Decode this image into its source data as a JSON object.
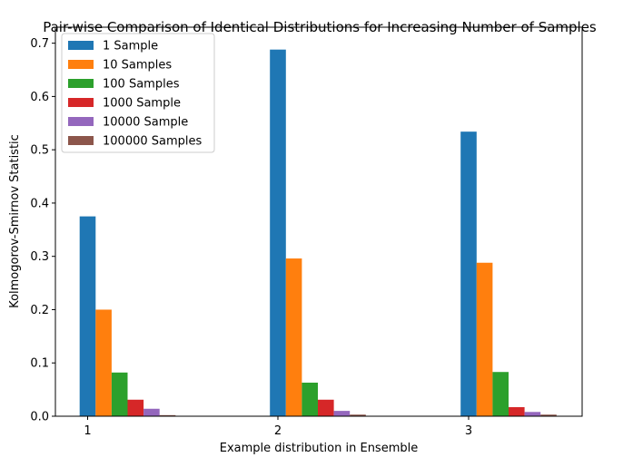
{
  "chart_data": {
    "type": "bar",
    "title": "Pair-wise Comparison of Identical Distributions for Increasing Number of Samples",
    "xlabel": "Example distribution in Ensemble",
    "ylabel": "Kolmogorov-Smirnov Statistic",
    "categories": [
      "1",
      "2",
      "3"
    ],
    "ylim": [
      0,
      0.73
    ],
    "yticks": [
      0.0,
      0.1,
      0.2,
      0.3,
      0.4,
      0.5,
      0.6,
      0.7
    ],
    "ytick_labels": [
      "0.0",
      "0.1",
      "0.2",
      "0.3",
      "0.4",
      "0.5",
      "0.6",
      "0.7"
    ],
    "grid": false,
    "legend_position": "top-left",
    "series": [
      {
        "name": "1 Sample",
        "color": "#1f77b4",
        "values": [
          0.375,
          0.688,
          0.534
        ]
      },
      {
        "name": "10 Samples",
        "color": "#ff7f0e",
        "values": [
          0.2,
          0.296,
          0.288
        ]
      },
      {
        "name": "100 Samples",
        "color": "#2ca02c",
        "values": [
          0.082,
          0.063,
          0.083
        ]
      },
      {
        "name": "1000 Sample",
        "color": "#d62728",
        "values": [
          0.031,
          0.031,
          0.017
        ]
      },
      {
        "name": "10000 Sample",
        "color": "#9467bd",
        "values": [
          0.014,
          0.01,
          0.008
        ]
      },
      {
        "name": "100000 Samples",
        "color": "#8c564b",
        "values": [
          0.002,
          0.003,
          0.003
        ]
      }
    ]
  }
}
